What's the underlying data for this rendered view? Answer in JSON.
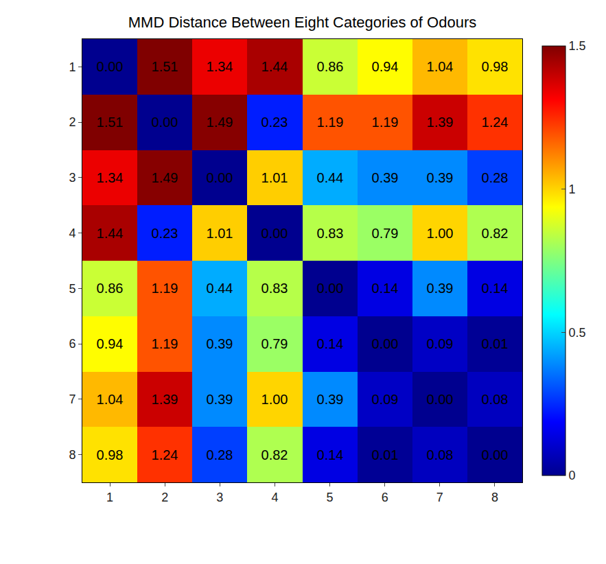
{
  "chart_data": {
    "type": "heatmap",
    "title": "MMD Distance Between Eight Categories of Odours",
    "x": [
      1,
      2,
      3,
      4,
      5,
      6,
      7,
      8
    ],
    "y": [
      1,
      2,
      3,
      4,
      5,
      6,
      7,
      8
    ],
    "xlim": [
      0.5,
      8.5
    ],
    "ylim": [
      8.5,
      0.5
    ],
    "xticks": [
      1,
      2,
      3,
      4,
      5,
      6,
      7,
      8
    ],
    "yticks": [
      1,
      2,
      3,
      4,
      5,
      6,
      7,
      8
    ],
    "z": [
      [
        0.0,
        1.51,
        1.34,
        1.44,
        0.86,
        0.94,
        1.04,
        0.98
      ],
      [
        1.51,
        0.0,
        1.49,
        0.23,
        1.19,
        1.19,
        1.39,
        1.24
      ],
      [
        1.34,
        1.49,
        0.0,
        1.01,
        0.44,
        0.39,
        0.39,
        0.28
      ],
      [
        1.44,
        0.23,
        1.01,
        0.0,
        0.83,
        0.79,
        1.0,
        0.82
      ],
      [
        0.86,
        1.19,
        0.44,
        0.83,
        0.0,
        0.14,
        0.39,
        0.14
      ],
      [
        0.94,
        1.19,
        0.39,
        0.79,
        0.14,
        0.0,
        0.09,
        0.01
      ],
      [
        1.04,
        1.39,
        0.39,
        1.0,
        0.39,
        0.09,
        0.0,
        0.08
      ],
      [
        0.98,
        1.24,
        0.28,
        0.82,
        0.14,
        0.01,
        0.08,
        0.0
      ]
    ],
    "value_labels": [
      [
        "0.00",
        "1.51",
        "1.34",
        "1.44",
        "0.86",
        "0.94",
        "1.04",
        "0.98"
      ],
      [
        "1.51",
        "0.00",
        "1.49",
        "0.23",
        "1.19",
        "1.19",
        "1.39",
        "1.24"
      ],
      [
        "1.34",
        "1.49",
        "0.00",
        "1.01",
        "0.44",
        "0.39",
        "0.39",
        "0.28"
      ],
      [
        "1.44",
        "0.23",
        "1.01",
        "0.00",
        "0.83",
        "0.79",
        "1.00",
        "0.82"
      ],
      [
        "0.86",
        "1.19",
        "0.44",
        "0.83",
        "0.00",
        "0.14",
        "0.39",
        "0.14"
      ],
      [
        "0.94",
        "1.19",
        "0.39",
        "0.79",
        "0.14",
        "0.00",
        "0.09",
        "0.01"
      ],
      [
        "1.04",
        "1.39",
        "0.39",
        "1.00",
        "0.39",
        "0.09",
        "0.00",
        "0.08"
      ],
      [
        "0.98",
        "1.24",
        "0.28",
        "0.82",
        "0.14",
        "0.01",
        "0.08",
        "0.00"
      ]
    ],
    "zlim": [
      0,
      1.5
    ],
    "zticks": [
      0,
      0.5,
      1,
      1.5
    ],
    "data_labels": true
  }
}
